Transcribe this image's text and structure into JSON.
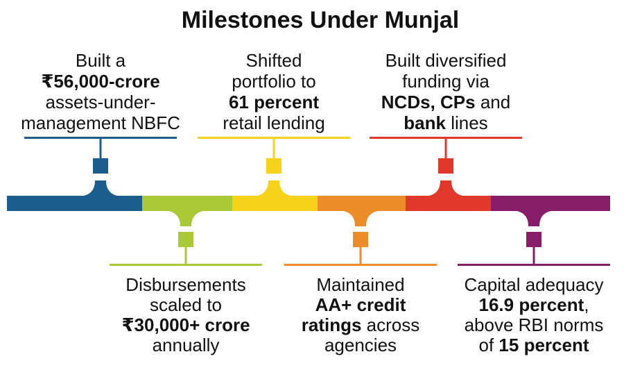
{
  "title": "Milestones Under Munjal",
  "milestones": [
    {
      "lines": [
        [
          {
            "text": "Built a"
          }
        ],
        [
          {
            "text": "₹56,000-crore",
            "bold": true
          }
        ],
        [
          {
            "text": "assets-under-"
          }
        ],
        [
          {
            "text": "management NBFC"
          }
        ]
      ]
    },
    {
      "lines": [
        [
          {
            "text": "Disbursements"
          }
        ],
        [
          {
            "text": "scaled to"
          }
        ],
        [
          {
            "text": "₹30,000+ crore",
            "bold": true
          }
        ],
        [
          {
            "text": "annually"
          }
        ]
      ]
    },
    {
      "lines": [
        [
          {
            "text": "Shifted"
          }
        ],
        [
          {
            "text": "portfolio to"
          }
        ],
        [
          {
            "text": "61 percent",
            "bold": true
          }
        ],
        [
          {
            "text": "retail lending"
          }
        ]
      ]
    },
    {
      "lines": [
        [
          {
            "text": "Maintained"
          }
        ],
        [
          {
            "text": "AA+ credit",
            "bold": true
          }
        ],
        [
          {
            "text": "ratings",
            "bold": true
          },
          {
            "text": " across"
          }
        ],
        [
          {
            "text": "agencies"
          }
        ]
      ]
    },
    {
      "lines": [
        [
          {
            "text": "Built diversified"
          }
        ],
        [
          {
            "text": "funding via"
          }
        ],
        [
          {
            "text": "NCDs, CPs",
            "bold": true
          },
          {
            "text": " and"
          }
        ],
        [
          {
            "text": "bank",
            "bold": true
          },
          {
            "text": " lines"
          }
        ]
      ]
    },
    {
      "lines": [
        [
          {
            "text": "Capital adequacy"
          }
        ],
        [
          {
            "text": "16.9 percent",
            "bold": true
          },
          {
            "text": ","
          }
        ],
        [
          {
            "text": "above RBI norms"
          }
        ],
        [
          {
            "text": "of "
          },
          {
            "text": "15 percent",
            "bold": true
          }
        ]
      ]
    }
  ]
}
